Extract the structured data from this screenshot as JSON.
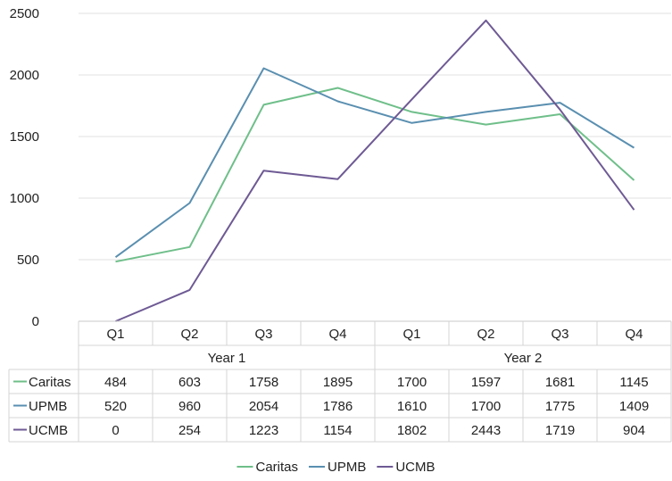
{
  "chart_data": {
    "type": "line",
    "title": "",
    "xlabel": "",
    "ylabel": "",
    "ylim": [
      0,
      2500
    ],
    "yticks": [
      0,
      500,
      1000,
      1500,
      2000,
      2500
    ],
    "grid": true,
    "legend_position": "bottom",
    "data_table": true,
    "groups": [
      {
        "label": "Year 1",
        "categories": [
          "Q1",
          "Q2",
          "Q3",
          "Q4"
        ]
      },
      {
        "label": "Year 2",
        "categories": [
          "Q1",
          "Q2",
          "Q3",
          "Q4"
        ]
      }
    ],
    "series": [
      {
        "name": "Caritas",
        "color": "#6fbf8a",
        "values": [
          484,
          603,
          1758,
          1895,
          1700,
          1597,
          1681,
          1145
        ]
      },
      {
        "name": "UPMB",
        "color": "#5a8fb0",
        "values": [
          520,
          960,
          2054,
          1786,
          1610,
          1700,
          1775,
          1409
        ]
      },
      {
        "name": "UCMB",
        "color": "#6e5a94",
        "values": [
          0,
          254,
          1223,
          1154,
          1802,
          2443,
          1719,
          904
        ]
      }
    ]
  }
}
